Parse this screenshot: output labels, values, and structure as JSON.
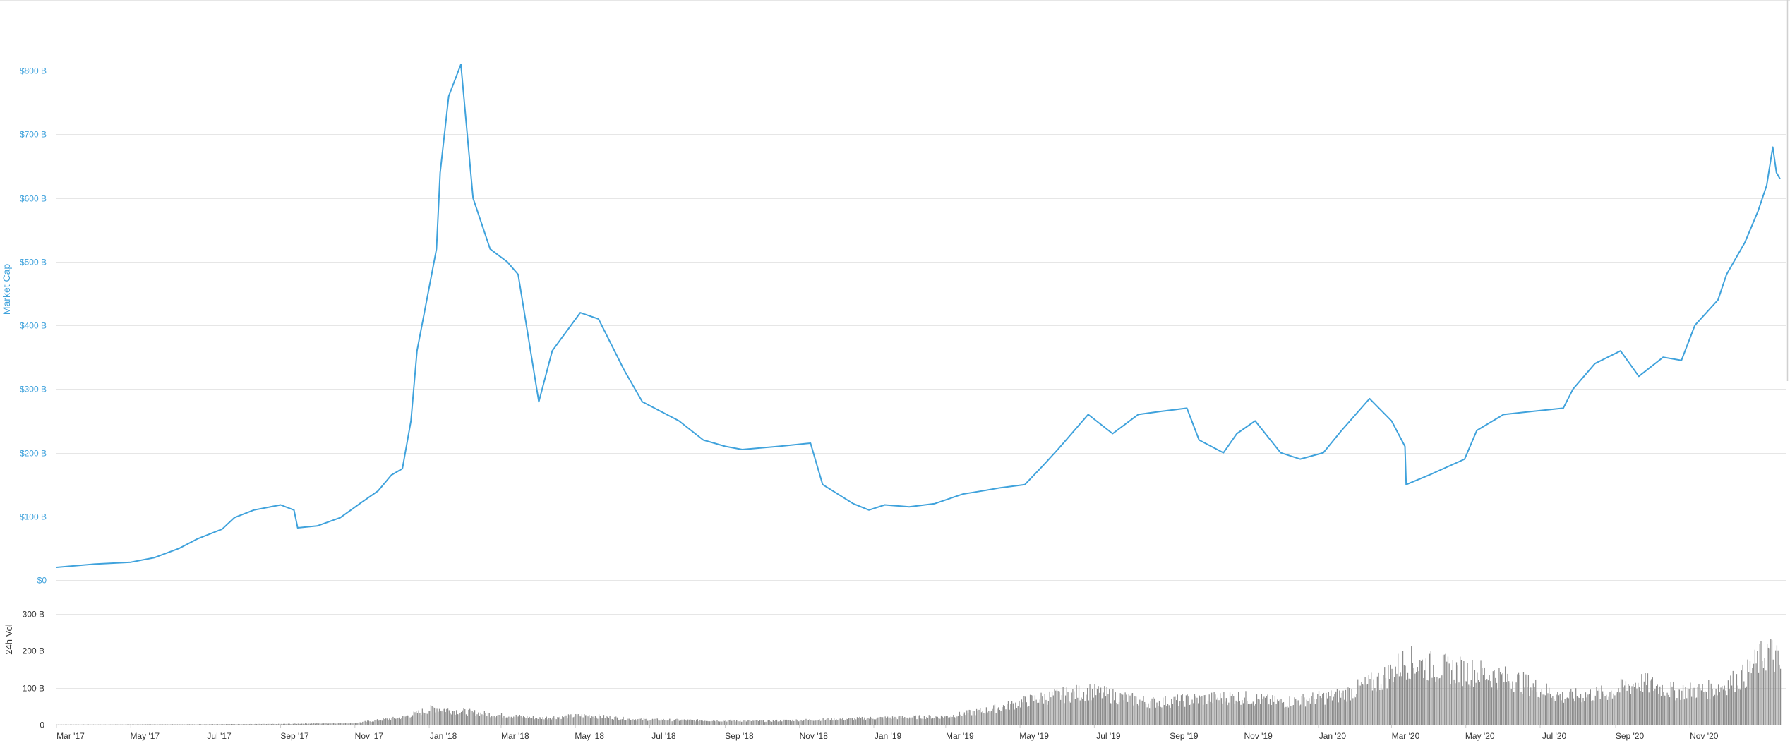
{
  "chart_data": [
    {
      "type": "line",
      "title": "",
      "ylabel": "Market Cap",
      "xlabel": "",
      "x_range": [
        "2017-03-01",
        "2021-01-14"
      ],
      "ylim": [
        0,
        900
      ],
      "y_unit": "B USD",
      "grid": true,
      "line_color": "#3fa2dc",
      "y_ticks": [
        {
          "value": 0,
          "label": "$0"
        },
        {
          "value": 100,
          "label": "$100 B"
        },
        {
          "value": 200,
          "label": "$200 B"
        },
        {
          "value": 300,
          "label": "$300 B"
        },
        {
          "value": 400,
          "label": "$400 B"
        },
        {
          "value": 500,
          "label": "$500 B"
        },
        {
          "value": 600,
          "label": "$600 B"
        },
        {
          "value": 700,
          "label": "$700 B"
        },
        {
          "value": 800,
          "label": "$800 B"
        }
      ],
      "series": [
        {
          "x": [
            "2017-03-01",
            "2017-04-01",
            "2017-05-01",
            "2017-05-20",
            "2017-06-10",
            "2017-06-25",
            "2017-07-15",
            "2017-07-25",
            "2017-08-10",
            "2017-09-01",
            "2017-09-12",
            "2017-09-15",
            "2017-10-01",
            "2017-10-20",
            "2017-11-05",
            "2017-11-20",
            "2017-12-01",
            "2017-12-10",
            "2017-12-17",
            "2017-12-22",
            "2017-12-28",
            "2018-01-07",
            "2018-01-10",
            "2018-01-17",
            "2018-01-27",
            "2018-02-06",
            "2018-02-20",
            "2018-03-06",
            "2018-03-15",
            "2018-04-01",
            "2018-04-12",
            "2018-05-05",
            "2018-05-20",
            "2018-06-10",
            "2018-06-25",
            "2018-07-25",
            "2018-08-14",
            "2018-09-01",
            "2018-09-15",
            "2018-10-15",
            "2018-11-10",
            "2018-11-20",
            "2018-12-15",
            "2018-12-28",
            "2019-01-10",
            "2019-01-30",
            "2019-02-20",
            "2019-03-15",
            "2019-03-31",
            "2019-04-15",
            "2019-05-05",
            "2019-05-20",
            "2019-06-01",
            "2019-06-26",
            "2019-07-16",
            "2019-08-06",
            "2019-08-25",
            "2019-09-15",
            "2019-09-25",
            "2019-10-15",
            "2019-10-26",
            "2019-11-10",
            "2019-12-01",
            "2019-12-17",
            "2020-01-05",
            "2020-01-20",
            "2020-02-12",
            "2020-03-01",
            "2020-03-12",
            "2020-03-13",
            "2020-04-01",
            "2020-04-30",
            "2020-05-10",
            "2020-06-01",
            "2020-06-25",
            "2020-07-20",
            "2020-07-28",
            "2020-08-15",
            "2020-09-05",
            "2020-09-20",
            "2020-10-10",
            "2020-10-25",
            "2020-11-05",
            "2020-11-24",
            "2020-12-01",
            "2020-12-16",
            "2020-12-27",
            "2021-01-03",
            "2021-01-08",
            "2021-01-11",
            "2021-01-14"
          ],
          "values": [
            20,
            25,
            28,
            35,
            50,
            65,
            80,
            98,
            110,
            118,
            110,
            82,
            85,
            98,
            120,
            140,
            165,
            175,
            250,
            360,
            420,
            520,
            640,
            760,
            810,
            600,
            520,
            500,
            480,
            280,
            360,
            420,
            410,
            330,
            280,
            250,
            220,
            210,
            205,
            210,
            215,
            150,
            120,
            110,
            118,
            115,
            120,
            135,
            140,
            145,
            150,
            180,
            205,
            260,
            230,
            260,
            265,
            270,
            220,
            200,
            230,
            250,
            200,
            190,
            200,
            235,
            285,
            250,
            210,
            150,
            165,
            190,
            235,
            260,
            265,
            270,
            300,
            340,
            360,
            320,
            350,
            345,
            400,
            440,
            480,
            530,
            580,
            620,
            680,
            640,
            630
          ]
        }
      ]
    },
    {
      "type": "bar",
      "title": "",
      "ylabel": "24h Vol",
      "xlabel": "",
      "x_range": [
        "2017-03-01",
        "2021-01-14"
      ],
      "ylim": [
        0,
        300
      ],
      "y_unit": "B USD",
      "grid": true,
      "bar_color": "#8a8a8a",
      "y_ticks": [
        {
          "value": 0,
          "label": "0"
        },
        {
          "value": 100,
          "label": "100 B"
        },
        {
          "value": 200,
          "label": "200 B"
        },
        {
          "value": 300,
          "label": "300 B"
        }
      ],
      "series": [
        {
          "x": [
            "2017-03-01",
            "2017-06-01",
            "2017-09-01",
            "2017-11-01",
            "2017-12-10",
            "2018-01-05",
            "2018-01-20",
            "2018-02-20",
            "2018-04-01",
            "2018-05-10",
            "2018-06-15",
            "2018-08-01",
            "2018-10-01",
            "2018-11-20",
            "2019-01-01",
            "2019-03-01",
            "2019-04-05",
            "2019-05-15",
            "2019-06-26",
            "2019-08-15",
            "2019-10-26",
            "2019-12-01",
            "2020-01-20",
            "2020-02-20",
            "2020-03-12",
            "2020-04-15",
            "2020-05-12",
            "2020-06-10",
            "2020-07-20",
            "2020-08-25",
            "2020-09-20",
            "2020-10-20",
            "2020-11-20",
            "2020-12-15",
            "2021-01-04",
            "2021-01-11",
            "2021-01-14"
          ],
          "values": [
            0.5,
            1,
            2,
            5,
            20,
            45,
            38,
            28,
            18,
            25,
            15,
            12,
            10,
            14,
            18,
            22,
            40,
            70,
            90,
            60,
            75,
            60,
            80,
            120,
            170,
            150,
            140,
            120,
            75,
            85,
            115,
            90,
            95,
            130,
            200,
            175,
            150
          ]
        }
      ]
    }
  ],
  "x_ticks": [
    {
      "date": "2017-03-01",
      "label": "Mar '17"
    },
    {
      "date": "2017-05-01",
      "label": "May '17"
    },
    {
      "date": "2017-07-01",
      "label": "Jul '17"
    },
    {
      "date": "2017-09-01",
      "label": "Sep '17"
    },
    {
      "date": "2017-11-01",
      "label": "Nov '17"
    },
    {
      "date": "2018-01-01",
      "label": "Jan '18"
    },
    {
      "date": "2018-03-01",
      "label": "Mar '18"
    },
    {
      "date": "2018-05-01",
      "label": "May '18"
    },
    {
      "date": "2018-07-01",
      "label": "Jul '18"
    },
    {
      "date": "2018-09-01",
      "label": "Sep '18"
    },
    {
      "date": "2018-11-01",
      "label": "Nov '18"
    },
    {
      "date": "2019-01-01",
      "label": "Jan '19"
    },
    {
      "date": "2019-03-01",
      "label": "Mar '19"
    },
    {
      "date": "2019-05-01",
      "label": "May '19"
    },
    {
      "date": "2019-07-01",
      "label": "Jul '19"
    },
    {
      "date": "2019-09-01",
      "label": "Sep '19"
    },
    {
      "date": "2019-11-01",
      "label": "Nov '19"
    },
    {
      "date": "2020-01-01",
      "label": "Jan '20"
    },
    {
      "date": "2020-03-01",
      "label": "Mar '20"
    },
    {
      "date": "2020-05-01",
      "label": "May '20"
    },
    {
      "date": "2020-07-01",
      "label": "Jul '20"
    },
    {
      "date": "2020-09-01",
      "label": "Sep '20"
    },
    {
      "date": "2020-11-01",
      "label": "Nov '20"
    }
  ]
}
